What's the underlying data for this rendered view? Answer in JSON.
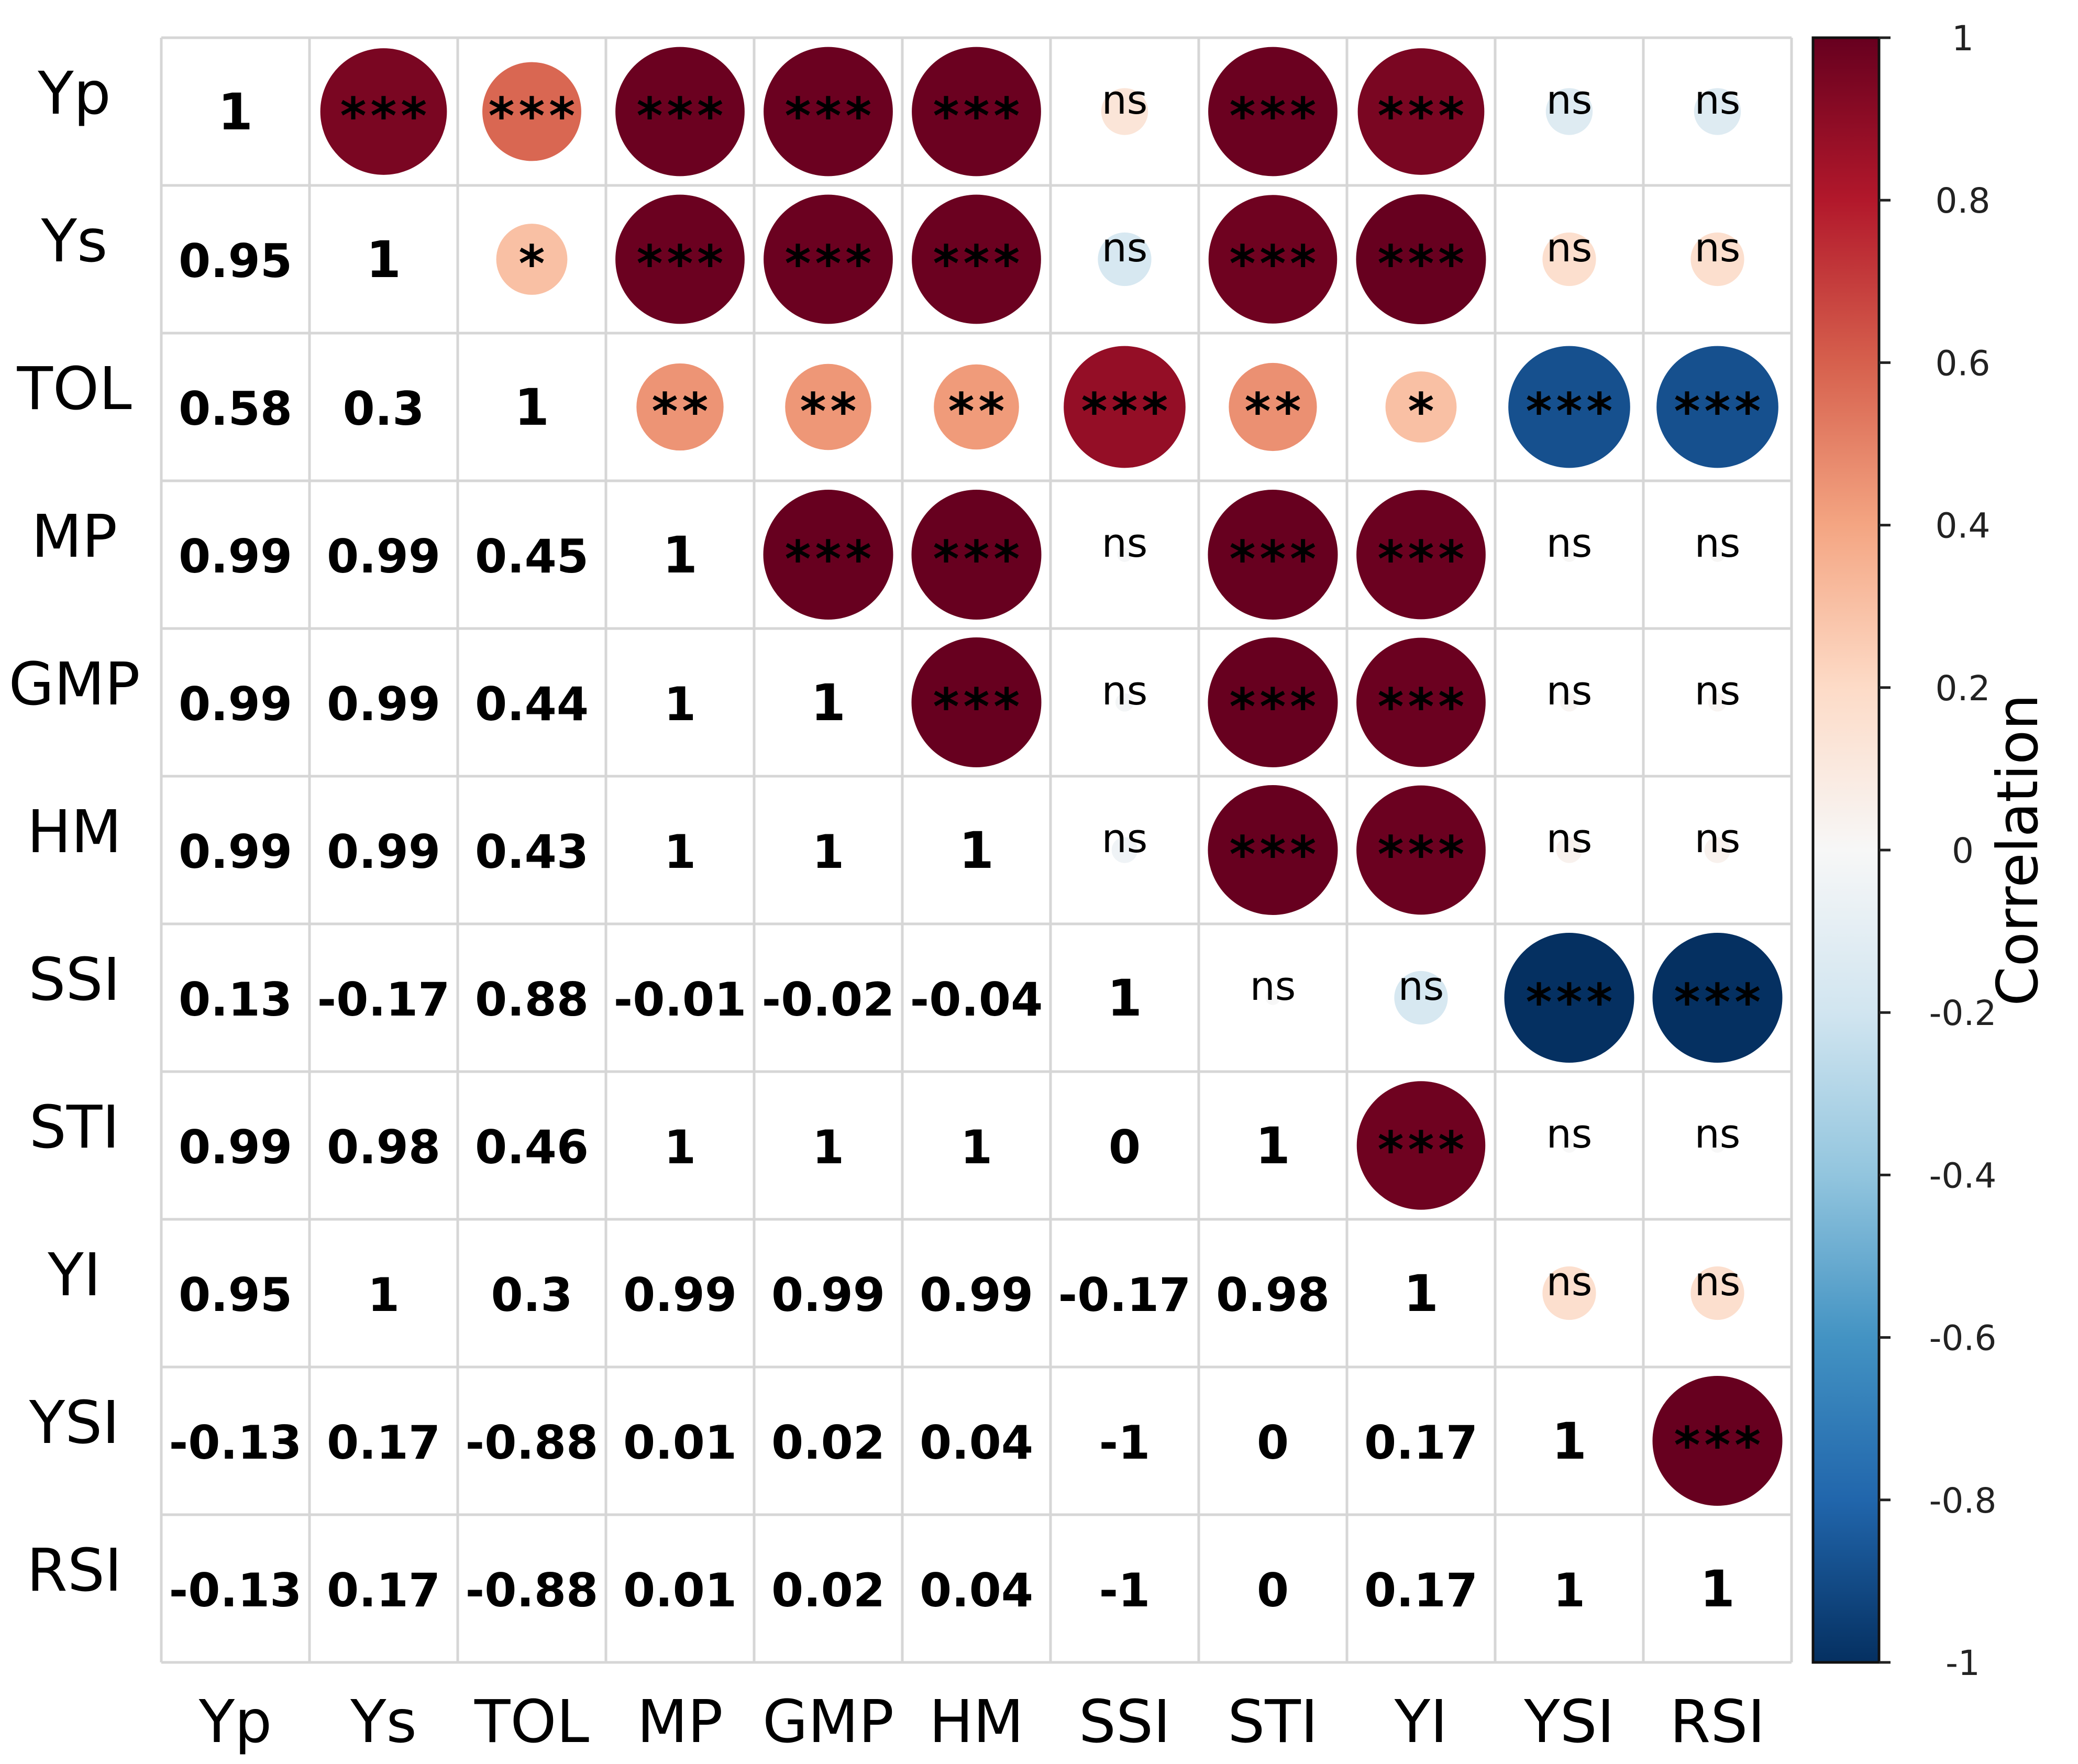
{
  "chart_data": {
    "type": "heatmap",
    "variables": [
      "Yp",
      "Ys",
      "TOL",
      "MP",
      "GMP",
      "HM",
      "SSI",
      "STI",
      "YI",
      "YSI",
      "RSI"
    ],
    "lower_triangle_labels": [
      [
        "1"
      ],
      [
        "0.95",
        "1"
      ],
      [
        "0.58",
        "0.3",
        "1"
      ],
      [
        "0.99",
        "0.99",
        "0.45",
        "1"
      ],
      [
        "0.99",
        "0.99",
        "0.44",
        "1",
        "1"
      ],
      [
        "0.99",
        "0.99",
        "0.43",
        "1",
        "1",
        "1"
      ],
      [
        "0.13",
        "-0.17",
        "0.88",
        "-0.01",
        "-0.02",
        "-0.04",
        "1"
      ],
      [
        "0.99",
        "0.98",
        "0.46",
        "1",
        "1",
        "1",
        "0",
        "1"
      ],
      [
        "0.95",
        "1",
        "0.3",
        "0.99",
        "0.99",
        "0.99",
        "-0.17",
        "0.98",
        "1"
      ],
      [
        "-0.13",
        "0.17",
        "-0.88",
        "0.01",
        "0.02",
        "0.04",
        "-1",
        "0",
        "0.17",
        "1"
      ],
      [
        "-0.13",
        "0.17",
        "-0.88",
        "0.01",
        "0.02",
        "0.04",
        "-1",
        "0",
        "0.17",
        "1",
        "1"
      ]
    ],
    "upper_triangle_significance": [
      [
        null,
        "***",
        "***",
        "***",
        "***",
        "***",
        "ns",
        "***",
        "***",
        "ns",
        "ns"
      ],
      [
        null,
        null,
        "*",
        "***",
        "***",
        "***",
        "ns",
        "***",
        "***",
        "ns",
        "ns"
      ],
      [
        null,
        null,
        null,
        "**",
        "**",
        "**",
        "***",
        "**",
        "*",
        "***",
        "***"
      ],
      [
        null,
        null,
        null,
        null,
        "***",
        "***",
        "ns",
        "***",
        "***",
        "ns",
        "ns"
      ],
      [
        null,
        null,
        null,
        null,
        null,
        "***",
        "ns",
        "***",
        "***",
        "ns",
        "ns"
      ],
      [
        null,
        null,
        null,
        null,
        null,
        null,
        "ns",
        "***",
        "***",
        "ns",
        "ns"
      ],
      [
        null,
        null,
        null,
        null,
        null,
        null,
        null,
        "ns",
        "ns",
        "***",
        "***"
      ],
      [
        null,
        null,
        null,
        null,
        null,
        null,
        null,
        null,
        "***",
        "ns",
        "ns"
      ],
      [
        null,
        null,
        null,
        null,
        null,
        null,
        null,
        null,
        null,
        "ns",
        "ns"
      ],
      [
        null,
        null,
        null,
        null,
        null,
        null,
        null,
        null,
        null,
        null,
        "***"
      ],
      [
        null,
        null,
        null,
        null,
        null,
        null,
        null,
        null,
        null,
        null,
        null
      ]
    ],
    "color_scale": {
      "min": -1,
      "max": 1,
      "ticks": [
        "1",
        "0.8",
        "0.6",
        "0.4",
        "0.2",
        "0",
        "-0.2",
        "-0.4",
        "-0.6",
        "-0.8",
        "-1"
      ],
      "tick_values": [
        1,
        0.8,
        0.6,
        0.4,
        0.2,
        0,
        -0.2,
        -0.4,
        -0.6,
        -0.8,
        -1
      ],
      "title": "Correlation",
      "colors": [
        "#053061",
        "#2166ac",
        "#4393c3",
        "#92c5de",
        "#d1e5f0",
        "#f7f7f7",
        "#fddbc7",
        "#f4a582",
        "#d6604d",
        "#b2182b",
        "#67001f"
      ]
    },
    "legend_placement": "right",
    "grid": true
  }
}
